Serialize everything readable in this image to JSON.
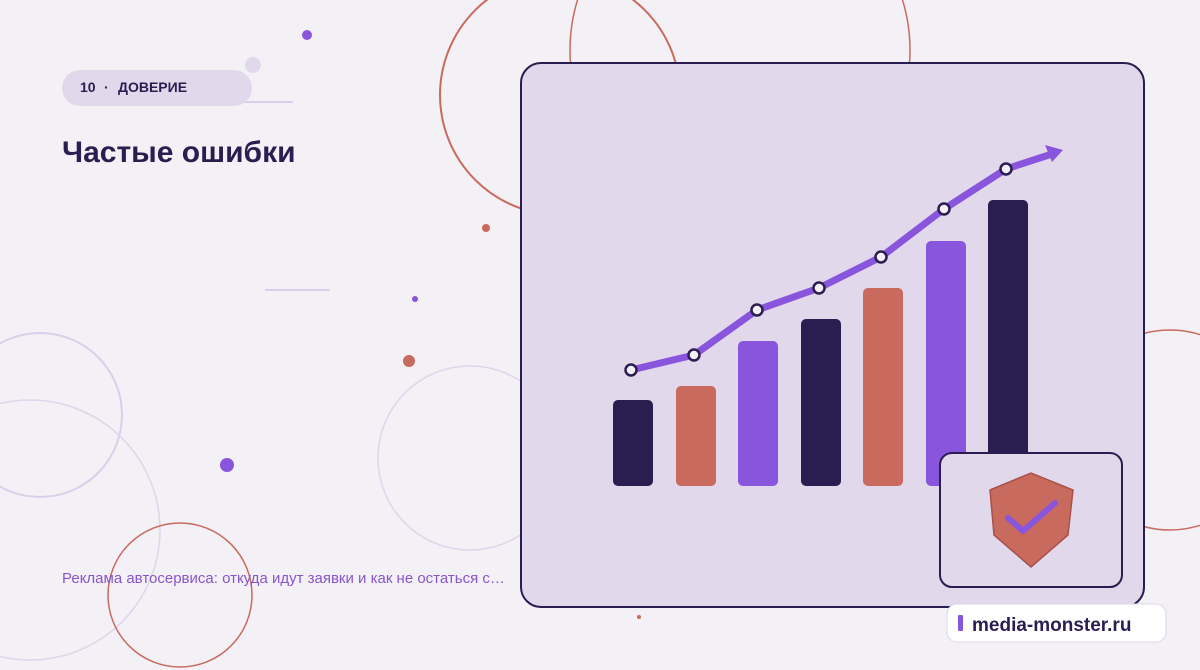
{
  "badge": {
    "number": "10",
    "separator": "·",
    "label": "ДОВЕРИЕ"
  },
  "title": "Частые ошибки",
  "subtitle": "Реклама автосервиса: откуда идут заявки и как не остаться с…",
  "brand": "media-monster.ru"
}
